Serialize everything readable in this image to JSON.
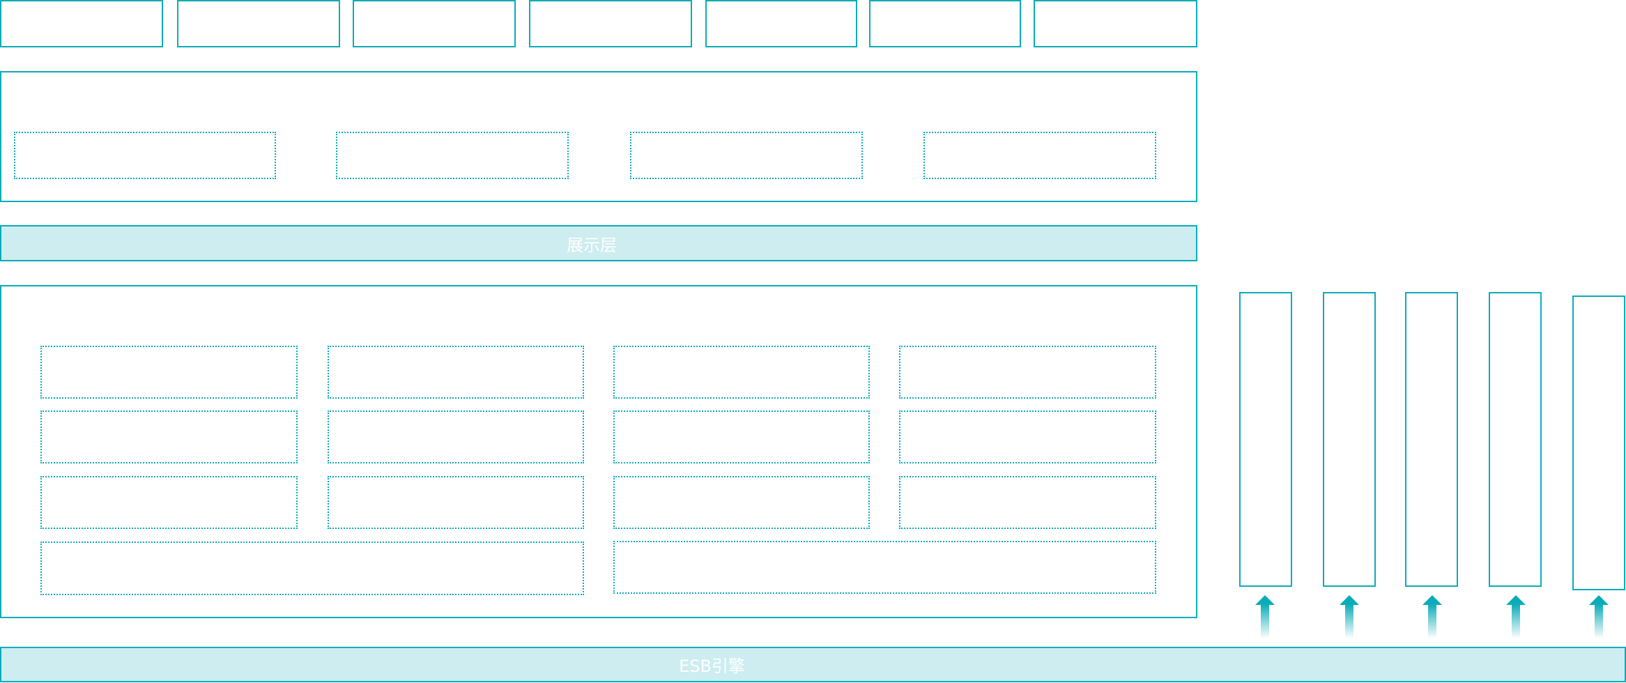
{
  "presentation_layer": {
    "label": "展示层"
  },
  "esb_engine": {
    "label": "ESB引擎"
  },
  "colors": {
    "border": "#0aacb8",
    "band_fill": "#cdedf0",
    "label": "#ffffff"
  },
  "icons": {
    "arrow": "arrow-up-gradient-icon"
  }
}
